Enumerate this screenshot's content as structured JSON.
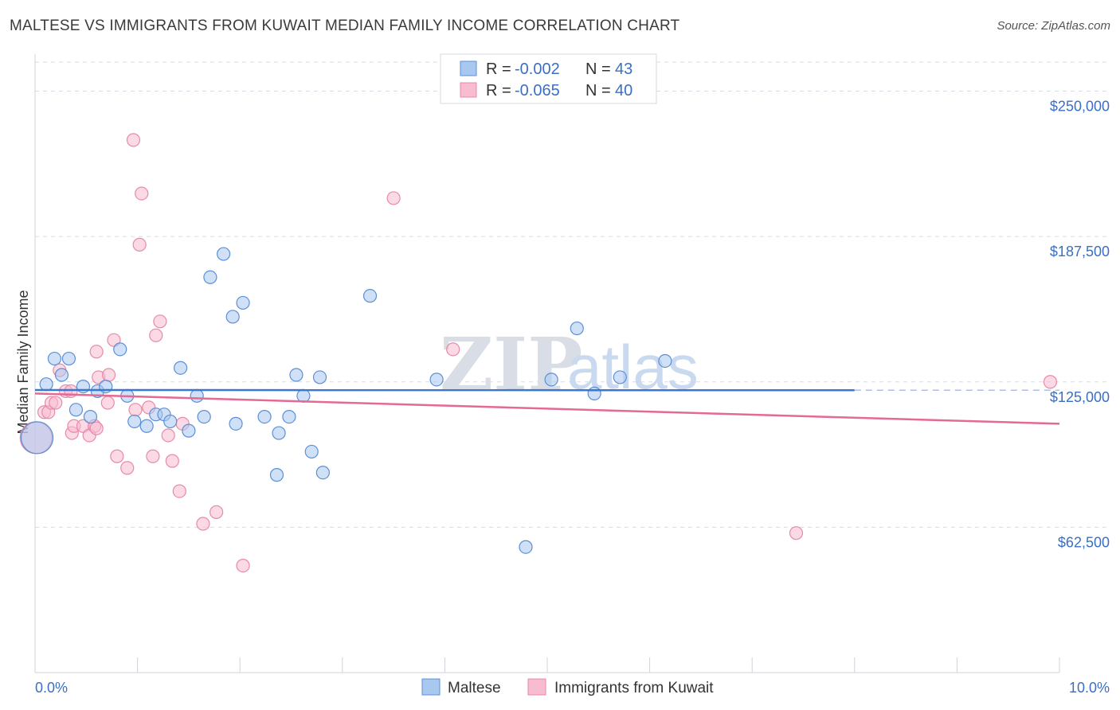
{
  "header": {
    "title": "MALTESE VS IMMIGRANTS FROM KUWAIT MEDIAN FAMILY INCOME CORRELATION CHART",
    "source": "Source: ZipAtlas.com"
  },
  "watermark": {
    "zip": "ZIP",
    "atlas": "atlas"
  },
  "legend": {
    "r_label": "R =",
    "n_label": "N =",
    "rows": [
      {
        "r": "-0.002",
        "n": "43"
      },
      {
        "r": "-0.065",
        "n": "40"
      }
    ]
  },
  "colors": {
    "blue_fill": "#a9c8f0",
    "blue_stroke": "#5b8fd6",
    "blue_line": "#3a78d0",
    "pink_fill": "#f7bcd0",
    "pink_stroke": "#e889a8",
    "pink_line": "#e26a95",
    "grid": "#d8dbe3",
    "axis_label": "#3a6fc4"
  },
  "chart_data": {
    "type": "scatter",
    "title": "MALTESE VS IMMIGRANTS FROM KUWAIT MEDIAN FAMILY INCOME CORRELATION CHART",
    "xlabel": "",
    "ylabel": "Median Family Income",
    "xlim": [
      0,
      10
    ],
    "ylim": [
      0,
      262500
    ],
    "x_tick_labels": [
      "0.0%",
      "10.0%"
    ],
    "y_ticks": [
      62500,
      125000,
      187500,
      250000
    ],
    "y_tick_labels": [
      "$62,500",
      "$125,000",
      "$187,500",
      "$250,000"
    ],
    "series": [
      {
        "name": "Maltese",
        "r": -0.002,
        "n": 43,
        "trend": {
          "x": [
            0,
            8.0
          ],
          "y": [
            121500,
            121400
          ],
          "dashed_to_x": 10
        },
        "points": [
          {
            "x": 0.02,
            "y": 101000,
            "big": true
          },
          {
            "x": 0.11,
            "y": 124000
          },
          {
            "x": 0.19,
            "y": 135000
          },
          {
            "x": 0.26,
            "y": 128000
          },
          {
            "x": 0.33,
            "y": 135000
          },
          {
            "x": 0.4,
            "y": 113000
          },
          {
            "x": 0.47,
            "y": 123000
          },
          {
            "x": 0.54,
            "y": 110000
          },
          {
            "x": 0.61,
            "y": 121000
          },
          {
            "x": 0.69,
            "y": 123000
          },
          {
            "x": 0.83,
            "y": 139000
          },
          {
            "x": 0.9,
            "y": 119000
          },
          {
            "x": 0.97,
            "y": 108000
          },
          {
            "x": 1.09,
            "y": 106000
          },
          {
            "x": 1.18,
            "y": 111000
          },
          {
            "x": 1.26,
            "y": 111000
          },
          {
            "x": 1.32,
            "y": 108000
          },
          {
            "x": 1.42,
            "y": 131000
          },
          {
            "x": 1.5,
            "y": 104000
          },
          {
            "x": 1.58,
            "y": 119000
          },
          {
            "x": 1.65,
            "y": 110000
          },
          {
            "x": 1.71,
            "y": 170000
          },
          {
            "x": 1.84,
            "y": 180000
          },
          {
            "x": 1.93,
            "y": 153000
          },
          {
            "x": 1.96,
            "y": 107000
          },
          {
            "x": 2.03,
            "y": 159000
          },
          {
            "x": 2.24,
            "y": 110000
          },
          {
            "x": 2.38,
            "y": 103000
          },
          {
            "x": 2.36,
            "y": 85000
          },
          {
            "x": 2.48,
            "y": 110000
          },
          {
            "x": 2.55,
            "y": 128000
          },
          {
            "x": 2.62,
            "y": 119000
          },
          {
            "x": 2.7,
            "y": 95000
          },
          {
            "x": 2.78,
            "y": 127000
          },
          {
            "x": 2.81,
            "y": 86000
          },
          {
            "x": 3.27,
            "y": 162000
          },
          {
            "x": 3.92,
            "y": 126000
          },
          {
            "x": 4.79,
            "y": 54000
          },
          {
            "x": 5.04,
            "y": 126000
          },
          {
            "x": 5.29,
            "y": 148000
          },
          {
            "x": 5.46,
            "y": 120000
          },
          {
            "x": 5.71,
            "y": 127000
          },
          {
            "x": 6.15,
            "y": 134000
          }
        ]
      },
      {
        "name": "Immigrants from Kuwait",
        "r": -0.065,
        "n": 40,
        "trend": {
          "x": [
            0,
            10
          ],
          "y": [
            120000,
            107000
          ]
        },
        "points": [
          {
            "x": 0.01,
            "y": 101000,
            "big": true
          },
          {
            "x": 0.09,
            "y": 112000
          },
          {
            "x": 0.13,
            "y": 112000
          },
          {
            "x": 0.16,
            "y": 116000
          },
          {
            "x": 0.2,
            "y": 116000
          },
          {
            "x": 0.24,
            "y": 130000
          },
          {
            "x": 0.3,
            "y": 121000
          },
          {
            "x": 0.35,
            "y": 121000
          },
          {
            "x": 0.36,
            "y": 103000
          },
          {
            "x": 0.38,
            "y": 106000
          },
          {
            "x": 0.47,
            "y": 106000
          },
          {
            "x": 0.53,
            "y": 102000
          },
          {
            "x": 0.58,
            "y": 106000
          },
          {
            "x": 0.6,
            "y": 105000
          },
          {
            "x": 0.6,
            "y": 138000
          },
          {
            "x": 0.62,
            "y": 127000
          },
          {
            "x": 0.71,
            "y": 116000
          },
          {
            "x": 0.72,
            "y": 128000
          },
          {
            "x": 0.77,
            "y": 143000
          },
          {
            "x": 0.8,
            "y": 93000
          },
          {
            "x": 0.9,
            "y": 88000
          },
          {
            "x": 0.96,
            "y": 229000
          },
          {
            "x": 0.98,
            "y": 113000
          },
          {
            "x": 1.02,
            "y": 184000
          },
          {
            "x": 1.04,
            "y": 206000
          },
          {
            "x": 1.11,
            "y": 114000
          },
          {
            "x": 1.15,
            "y": 93000
          },
          {
            "x": 1.18,
            "y": 145000
          },
          {
            "x": 1.22,
            "y": 151000
          },
          {
            "x": 1.3,
            "y": 102000
          },
          {
            "x": 1.34,
            "y": 91000
          },
          {
            "x": 1.41,
            "y": 78000
          },
          {
            "x": 1.44,
            "y": 107000
          },
          {
            "x": 1.64,
            "y": 64000
          },
          {
            "x": 1.77,
            "y": 69000
          },
          {
            "x": 2.03,
            "y": 46000
          },
          {
            "x": 3.5,
            "y": 204000
          },
          {
            "x": 4.08,
            "y": 139000
          },
          {
            "x": 7.43,
            "y": 60000
          },
          {
            "x": 9.91,
            "y": 125000
          }
        ]
      }
    ],
    "bottom_legend": [
      "Maltese",
      "Immigrants from Kuwait"
    ]
  }
}
